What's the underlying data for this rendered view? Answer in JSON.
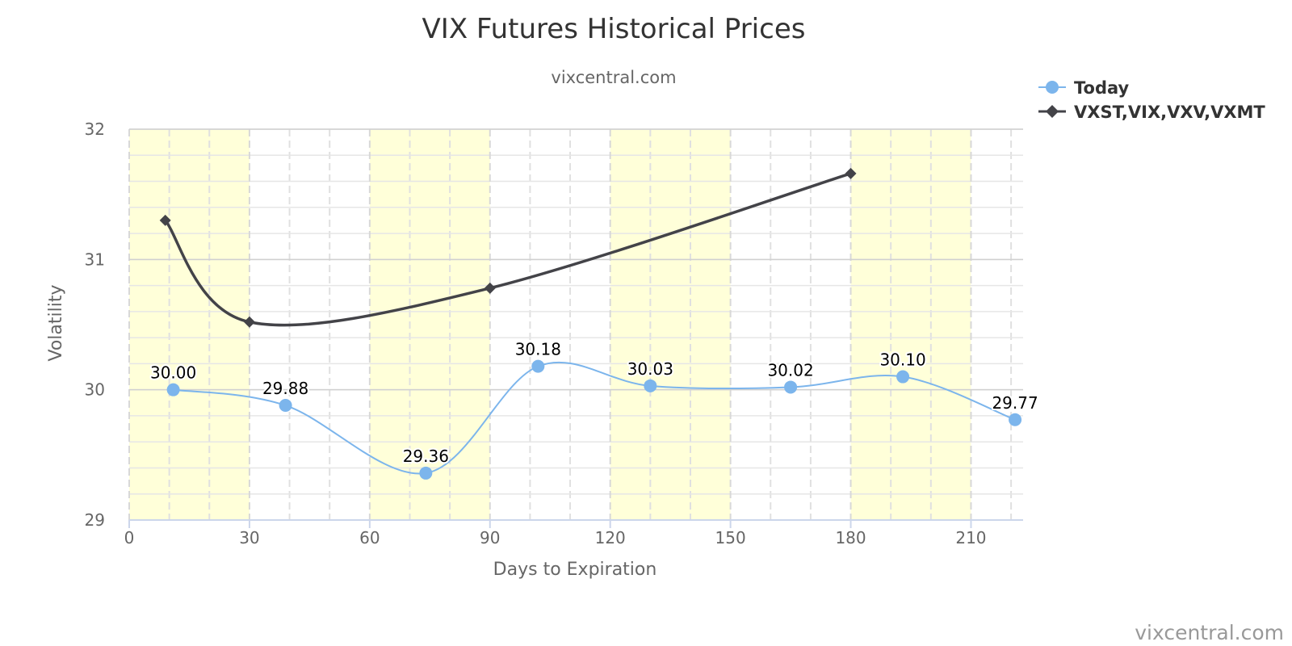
{
  "chart_data": {
    "type": "line",
    "title": "VIX Futures Historical Prices",
    "subtitle": "vixcentral.com",
    "xlabel": "Days to Expiration",
    "ylabel": "Volatility",
    "xlim": [
      0,
      223
    ],
    "ylim": [
      29,
      32
    ],
    "xticks": [
      0,
      30,
      60,
      90,
      120,
      150,
      180,
      210
    ],
    "yticks": [
      29,
      30,
      31,
      32
    ],
    "x_minor_step": 10,
    "y_minor_step": 0.2,
    "grid": true,
    "legend_position": "top-right",
    "band_color": "#ffffd9",
    "bands": [
      [
        0,
        30
      ],
      [
        60,
        90
      ],
      [
        120,
        150
      ],
      [
        180,
        210
      ]
    ],
    "series": [
      {
        "name": "Today",
        "color": "#7cb5ec",
        "marker": "circle",
        "x": [
          11,
          39,
          74,
          102,
          130,
          165,
          193,
          221
        ],
        "y": [
          30.0,
          29.88,
          29.36,
          30.18,
          30.03,
          30.02,
          30.1,
          29.77
        ],
        "labels": [
          "30.00",
          "29.88",
          "29.36",
          "30.18",
          "30.03",
          "30.02",
          "30.10",
          "29.77"
        ]
      },
      {
        "name": "VXST,VIX,VXV,VXMT",
        "color": "#434348",
        "marker": "diamond",
        "x": [
          9,
          30,
          90,
          180
        ],
        "y": [
          31.3,
          30.52,
          30.78,
          31.66
        ]
      }
    ],
    "credit": "vixcentral.com"
  }
}
